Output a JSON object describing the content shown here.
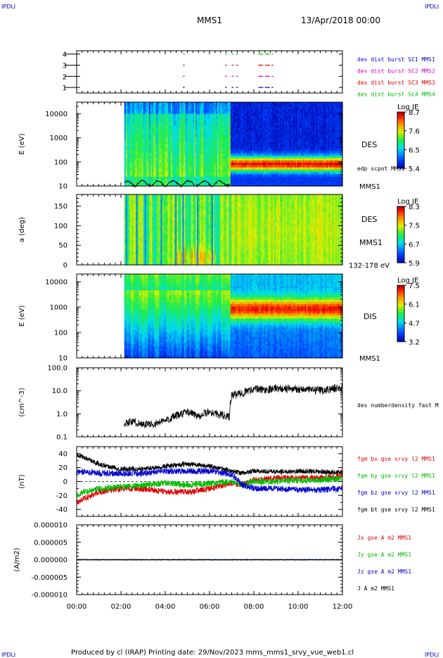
{
  "header": {
    "corner_left": "IPDLI",
    "corner_right": "IPDLI",
    "mission": "MMS1",
    "date": "13/Apr/2018 00:00"
  },
  "footer": {
    "text": "Produced by cl (IRAP)   Printing date: 29/Nov/2023   mms_mms1_srvy_vue_web1.cl",
    "corner_left": "IPDLI",
    "corner_right": "IPDLI"
  },
  "time_axis": {
    "ticks": [
      "00:00",
      "02:00",
      "04:00",
      "06:00",
      "08:00",
      "10:00",
      "12:00"
    ],
    "range_hours": [
      0,
      12
    ]
  },
  "chart_data": [
    {
      "type": "table",
      "id": "burst_panel",
      "yticks": [
        "1",
        "2",
        "3",
        "4"
      ],
      "legend": [
        {
          "text": "des dist burst SC1 MMS1",
          "color": "#0000cc"
        },
        {
          "text": "des dist burst SC2 MMS2",
          "color": "#cc00cc"
        },
        {
          "text": "des dist burst SC3 MMS3",
          "color": "#dd0000"
        },
        {
          "text": "des dist burst SC4 MMS4",
          "color": "#00bb00"
        }
      ],
      "bursts_hours": [
        4.8,
        6.7,
        7.0,
        7.2,
        8.2,
        8.5,
        8.8
      ],
      "sc_colors": [
        "#0000cc",
        "#cc00cc",
        "#dd0000",
        "#00bb00"
      ]
    },
    {
      "type": "heatmap",
      "id": "des_energy",
      "ylabel": "E (eV)",
      "yticks": [
        "10",
        "100",
        "1000",
        "10000"
      ],
      "ylim": [
        10,
        30000
      ],
      "data_start_hours": 2.15,
      "boundary_hours": 6.95,
      "instrument": "DES",
      "overlay_label": "edp scpot MMS1",
      "spacecraft": "MMS1",
      "colorbar": {
        "title": "Log JE",
        "ticks": [
          "8.7",
          "7.6",
          "6.5",
          "5.4"
        ]
      }
    },
    {
      "type": "heatmap",
      "id": "des_pitch",
      "ylabel": "a (deg)",
      "yticks": [
        "0",
        "50",
        "100",
        "150"
      ],
      "ylim": [
        0,
        180
      ],
      "data_start_hours": 2.15,
      "instrument": "DES",
      "spacecraft": "MMS1",
      "energy_range": "132-178 eV",
      "colorbar": {
        "title": "Log JE",
        "ticks": [
          "8.3",
          "7.5",
          "6.7",
          "5.9"
        ]
      }
    },
    {
      "type": "heatmap",
      "id": "dis_energy",
      "ylabel": "E (eV)",
      "yticks": [
        "10",
        "100",
        "1000",
        "10000"
      ],
      "ylim": [
        10,
        20000
      ],
      "data_start_hours": 2.15,
      "boundary_hours": 6.95,
      "instrument": "DIS",
      "spacecraft": "MMS1",
      "colorbar": {
        "title": "Log JE",
        "ticks": [
          "7.5",
          "6.1",
          "4.7",
          "3.2"
        ]
      }
    },
    {
      "type": "line",
      "id": "density",
      "ylabel": "(cm^-3)",
      "yticks": [
        "0.1",
        "1.0",
        "10.0",
        "100.0"
      ],
      "ylim": [
        0.1,
        100
      ],
      "scale": "log",
      "series": [
        {
          "name": "des numberdensity fast M",
          "color": "#000000",
          "x": [
            2.15,
            2.5,
            3.0,
            3.5,
            4.0,
            4.5,
            5.0,
            5.5,
            6.0,
            6.5,
            6.9,
            7.0,
            7.5,
            8.0,
            8.5,
            9.0,
            9.5,
            10.0,
            10.5,
            11.0,
            11.5,
            12.0
          ],
          "y": [
            0.4,
            0.45,
            0.35,
            0.35,
            0.5,
            0.8,
            1.2,
            0.8,
            1.2,
            0.9,
            0.7,
            6.0,
            8.0,
            12.0,
            11.0,
            13.0,
            12.0,
            12.0,
            11.0,
            10.0,
            12.0,
            14.0
          ]
        }
      ]
    },
    {
      "type": "line",
      "id": "magnetic_field",
      "ylabel": "(nT)",
      "yticks": [
        "-40",
        "-20",
        "0",
        "20",
        "40"
      ],
      "ylim": [
        -50,
        50
      ],
      "series": [
        {
          "name": "fgm bx gse srvy l2 MMS1",
          "color": "#dd0000",
          "x": [
            0,
            0.3,
            1,
            2,
            3,
            4,
            5,
            6,
            7,
            7.5,
            8,
            9,
            10,
            11,
            12
          ],
          "y": [
            -30,
            -25,
            -15,
            -10,
            -10,
            -15,
            -15,
            -10,
            -3,
            -5,
            2,
            5,
            5,
            5,
            8
          ]
        },
        {
          "name": "fgm by gse srvy l2 MMS1",
          "color": "#00bb00",
          "x": [
            0,
            0.3,
            1,
            2,
            3,
            4,
            5,
            6,
            7,
            7.5,
            8,
            9,
            10,
            11,
            12
          ],
          "y": [
            -20,
            -15,
            -10,
            -8,
            -5,
            -2,
            -5,
            -3,
            0,
            -5,
            0,
            0,
            2,
            2,
            5
          ]
        },
        {
          "name": "fgm bz gse srvy l2 MMS1",
          "color": "#0000cc",
          "x": [
            0,
            0.3,
            1,
            2,
            3,
            4,
            5,
            6,
            7,
            7.5,
            8,
            9,
            10,
            11,
            12
          ],
          "y": [
            15,
            14,
            12,
            12,
            12,
            15,
            15,
            15,
            10,
            -5,
            -10,
            -10,
            -12,
            -12,
            -10
          ]
        },
        {
          "name": "fgm bt gse srvy l2 MMS1",
          "color": "#000000",
          "x": [
            0,
            0.3,
            1,
            2,
            3,
            4,
            5,
            6,
            7,
            7.5,
            8,
            9,
            10,
            11,
            12
          ],
          "y": [
            38,
            35,
            25,
            18,
            18,
            22,
            25,
            22,
            15,
            12,
            15,
            14,
            15,
            14,
            13
          ]
        }
      ]
    },
    {
      "type": "line",
      "id": "current_density",
      "ylabel": "(A/m2)",
      "yticks": [
        "-0.000010",
        "-0.000005",
        "0.000000",
        "0.000005",
        "0.000010"
      ],
      "ylim": [
        -1e-05,
        1e-05
      ],
      "series": [
        {
          "name": "Jx gse A m2 MMS1",
          "color": "#dd0000",
          "x": [
            0,
            12
          ],
          "y": [
            0,
            0
          ]
        },
        {
          "name": "Jy gse A m2 MMS1",
          "color": "#00bb00",
          "x": [
            0,
            12
          ],
          "y": [
            0,
            0
          ]
        },
        {
          "name": "Jz gse A m2 MMS1",
          "color": "#0000cc",
          "x": [
            0,
            12
          ],
          "y": [
            0,
            0
          ]
        },
        {
          "name": "J A m2 MMS1",
          "color": "#000000",
          "x": [
            0,
            12
          ],
          "y": [
            0,
            0
          ]
        }
      ]
    }
  ]
}
